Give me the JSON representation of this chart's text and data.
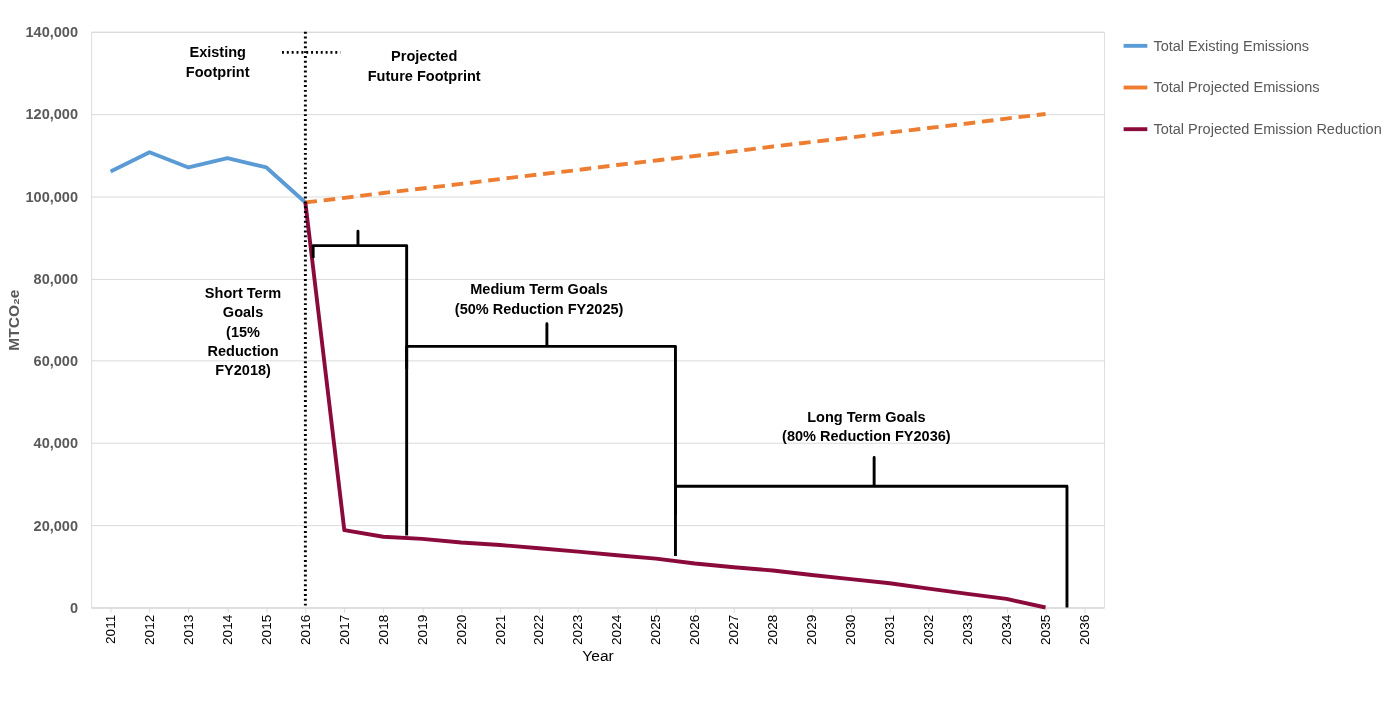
{
  "chart_data": {
    "type": "line",
    "xlabel": "Year",
    "ylabel": "MTCO₂e",
    "x": [
      2011,
      2012,
      2013,
      2014,
      2015,
      2016,
      2017,
      2018,
      2019,
      2020,
      2021,
      2022,
      2023,
      2024,
      2025,
      2026,
      2027,
      2028,
      2029,
      2030,
      2031,
      2032,
      2033,
      2034,
      2035
    ],
    "series": [
      {
        "name": "Total Existing Emissions",
        "color": "#5b9bd5",
        "line_style": "solid",
        "values": [
          106000,
          110700,
          107000,
          109300,
          107000,
          98500,
          null,
          null,
          null,
          null,
          null,
          null,
          null,
          null,
          null,
          null,
          null,
          null,
          null,
          null,
          null,
          null,
          null,
          null,
          null
        ]
      },
      {
        "name": "Total Projected Emissions",
        "color": "#ed7d31",
        "line_style": "dashed",
        "values": [
          null,
          null,
          null,
          null,
          null,
          98500,
          99600,
          100800,
          101900,
          103000,
          104200,
          105300,
          106400,
          107600,
          108700,
          109800,
          110900,
          112100,
          113200,
          114300,
          115500,
          116600,
          117700,
          118900,
          120000
        ]
      },
      {
        "name": "Total Projected Emission Reduction",
        "color": "#8b0a3c",
        "line_style": "solid",
        "values": [
          null,
          null,
          null,
          null,
          null,
          98500,
          18800,
          17200,
          16700,
          15800,
          15200,
          14400,
          13600,
          12700,
          11900,
          10700,
          9800,
          9000,
          7900,
          6900,
          5900,
          4600,
          3300,
          2100,
          0
        ]
      }
    ],
    "xlim": [
      2010.5,
      2036.5
    ],
    "xticks": [
      2011,
      2012,
      2013,
      2014,
      2015,
      2016,
      2017,
      2018,
      2019,
      2020,
      2021,
      2022,
      2023,
      2024,
      2025,
      2026,
      2027,
      2028,
      2029,
      2030,
      2031,
      2032,
      2033,
      2034,
      2035,
      2036
    ],
    "ylim": [
      0,
      140000
    ],
    "yticks": [
      {
        "value": 0,
        "label": "0"
      },
      {
        "value": 20000,
        "label": "20,000"
      },
      {
        "value": 40000,
        "label": "40,000"
      },
      {
        "value": 60000,
        "label": "60,000"
      },
      {
        "value": 80000,
        "label": "80,000"
      },
      {
        "value": 100000,
        "label": "100,000"
      },
      {
        "value": 120000,
        "label": "120,000"
      },
      {
        "value": 140000,
        "label": "140,000"
      }
    ],
    "ref_lines": [
      {
        "axis": "x",
        "value": 2016,
        "color": "#000000",
        "line_style": "dotted"
      }
    ],
    "annotations": [
      "Existing\nFootprint",
      "Projected\nFuture Footprint",
      "Short Term\nGoals\n(15%\nReduction\nFY2018)",
      "Medium Term Goals\n(50% Reduction FY2025)",
      "Long Term Goals\n(80% Reduction FY2036)"
    ],
    "grid": "y",
    "legend": "right",
    "marker": "none"
  }
}
